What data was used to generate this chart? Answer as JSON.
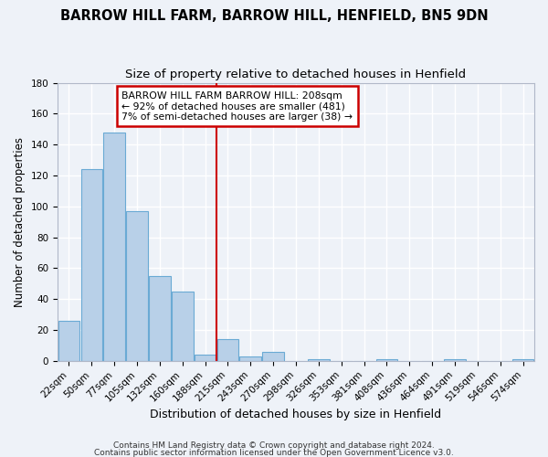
{
  "title": "BARROW HILL FARM, BARROW HILL, HENFIELD, BN5 9DN",
  "subtitle": "Size of property relative to detached houses in Henfield",
  "xlabel": "Distribution of detached houses by size in Henfield",
  "ylabel": "Number of detached properties",
  "bar_labels": [
    "22sqm",
    "50sqm",
    "77sqm",
    "105sqm",
    "132sqm",
    "160sqm",
    "188sqm",
    "215sqm",
    "243sqm",
    "270sqm",
    "298sqm",
    "326sqm",
    "353sqm",
    "381sqm",
    "408sqm",
    "436sqm",
    "464sqm",
    "491sqm",
    "519sqm",
    "546sqm",
    "574sqm"
  ],
  "bar_values": [
    26,
    124,
    148,
    97,
    55,
    45,
    4,
    14,
    3,
    6,
    0,
    1,
    0,
    0,
    1,
    0,
    0,
    1,
    0,
    0,
    1
  ],
  "bar_color": "#b8d0e8",
  "bar_edge_color": "#6aaad4",
  "vline_x_index": 7,
  "vline_color": "#cc0000",
  "ylim": [
    0,
    180
  ],
  "yticks": [
    0,
    20,
    40,
    60,
    80,
    100,
    120,
    140,
    160,
    180
  ],
  "annotation_title": "BARROW HILL FARM BARROW HILL: 208sqm",
  "annotation_line1": "← 92% of detached houses are smaller (481)",
  "annotation_line2": "7% of semi-detached houses are larger (38) →",
  "footer1": "Contains HM Land Registry data © Crown copyright and database right 2024.",
  "footer2": "Contains public sector information licensed under the Open Government Licence v3.0.",
  "background_color": "#eef2f8",
  "grid_color": "#ffffff",
  "title_fontsize": 10.5,
  "subtitle_fontsize": 9.5,
  "xlabel_fontsize": 9,
  "ylabel_fontsize": 8.5,
  "tick_fontsize": 7.5,
  "footer_fontsize": 6.5
}
